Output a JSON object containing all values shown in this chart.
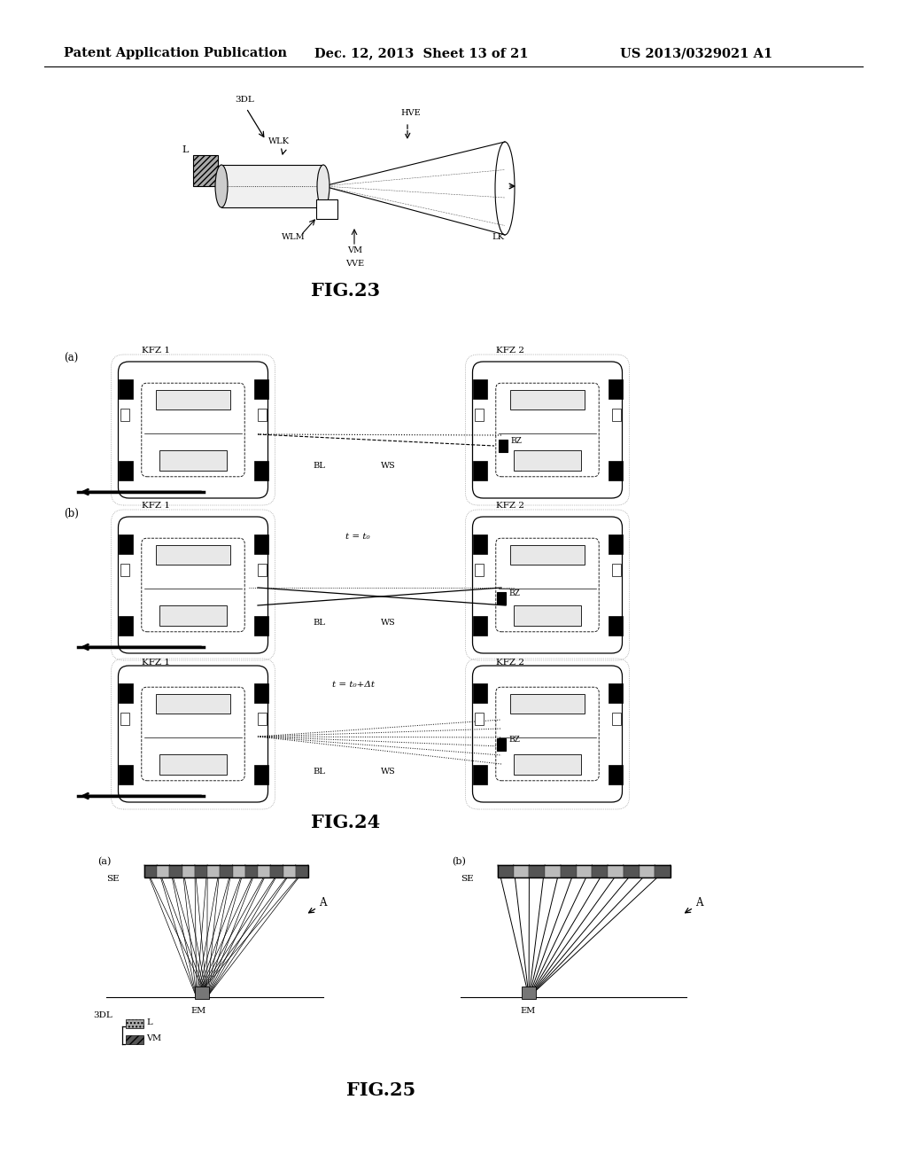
{
  "header_left": "Patent Application Publication",
  "header_center": "Dec. 12, 2013  Sheet 13 of 21",
  "header_right": "US 2013/0329021 A1",
  "fig23_label": "FIG.23",
  "fig24_label": "FIG.24",
  "fig25_label": "FIG.25",
  "bg_color": "#ffffff",
  "line_color": "#000000",
  "gray_color": "#666666"
}
